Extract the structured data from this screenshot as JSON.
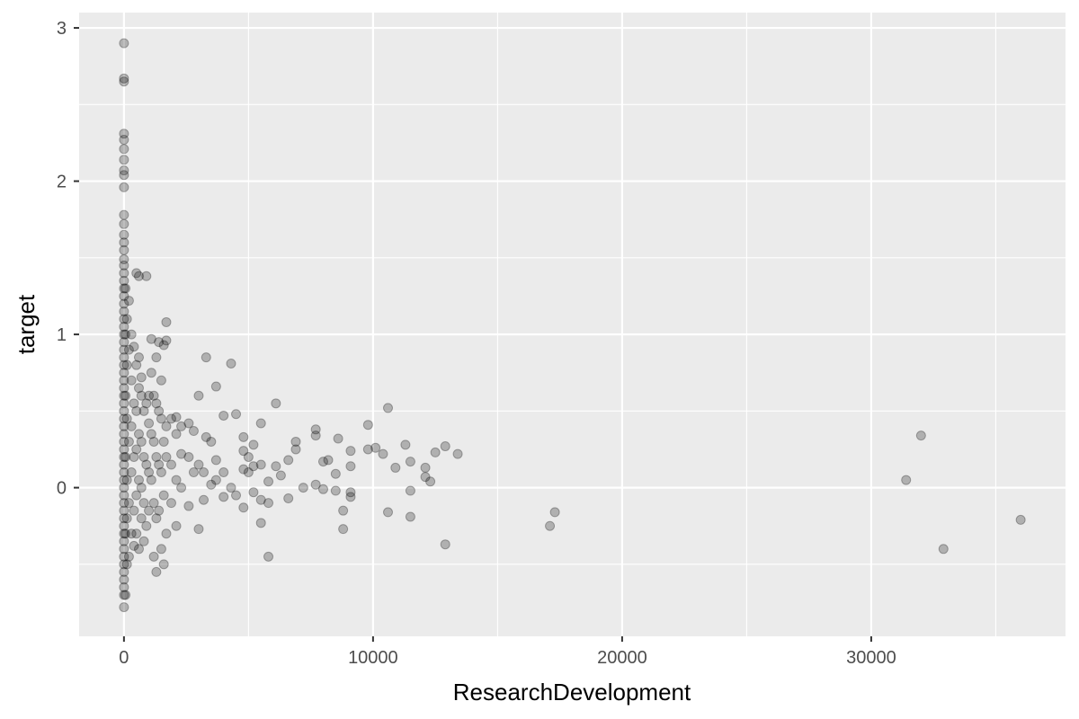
{
  "chart_data": {
    "type": "scatter",
    "title": "",
    "xlabel": "ResearchDevelopment",
    "ylabel": "target",
    "xlim": [
      -1800,
      37800
    ],
    "ylim": [
      -0.97,
      3.1
    ],
    "x_ticks": [
      0,
      10000,
      20000,
      30000
    ],
    "x_tick_labels": [
      "0",
      "10000",
      "20000",
      "30000"
    ],
    "x_minor": [
      5000,
      15000,
      25000,
      35000
    ],
    "y_ticks": [
      0,
      1,
      2,
      3
    ],
    "y_tick_labels": [
      "0",
      "1",
      "2",
      "3"
    ],
    "y_minor": [
      -0.5,
      0.5,
      1.5,
      2.5
    ],
    "grid": true,
    "legend": "none",
    "colors": {
      "panel": "#ebebeb",
      "grid": "#ffffff",
      "point": "#000000",
      "point_alpha": 0.25
    },
    "points": [
      [
        0,
        2.9
      ],
      [
        0,
        2.67
      ],
      [
        0,
        2.65
      ],
      [
        0,
        2.31
      ],
      [
        0,
        2.27
      ],
      [
        0,
        2.21
      ],
      [
        0,
        2.14
      ],
      [
        0,
        2.07
      ],
      [
        0,
        2.04
      ],
      [
        0,
        1.96
      ],
      [
        0,
        1.78
      ],
      [
        0,
        1.72
      ],
      [
        0,
        1.65
      ],
      [
        0,
        1.6
      ],
      [
        0,
        1.55
      ],
      [
        0,
        1.49
      ],
      [
        0,
        1.45
      ],
      [
        0,
        1.4
      ],
      [
        0,
        1.35
      ],
      [
        0,
        1.3
      ],
      [
        0,
        1.25
      ],
      [
        0,
        1.2
      ],
      [
        0,
        1.15
      ],
      [
        0,
        1.1
      ],
      [
        0,
        1.05
      ],
      [
        0,
        1.0
      ],
      [
        0,
        0.95
      ],
      [
        0,
        0.9
      ],
      [
        0,
        0.85
      ],
      [
        0,
        0.8
      ],
      [
        0,
        0.75
      ],
      [
        0,
        0.7
      ],
      [
        0,
        0.65
      ],
      [
        0,
        0.6
      ],
      [
        0,
        0.55
      ],
      [
        0,
        0.5
      ],
      [
        0,
        0.45
      ],
      [
        0,
        0.4
      ],
      [
        0,
        0.35
      ],
      [
        0,
        0.3
      ],
      [
        0,
        0.25
      ],
      [
        0,
        0.2
      ],
      [
        0,
        0.15
      ],
      [
        0,
        0.1
      ],
      [
        0,
        0.05
      ],
      [
        0,
        0.0
      ],
      [
        0,
        -0.05
      ],
      [
        0,
        -0.1
      ],
      [
        0,
        -0.15
      ],
      [
        0,
        -0.2
      ],
      [
        0,
        -0.25
      ],
      [
        0,
        -0.3
      ],
      [
        0,
        -0.35
      ],
      [
        0,
        -0.4
      ],
      [
        0,
        -0.45
      ],
      [
        0,
        -0.5
      ],
      [
        0,
        -0.55
      ],
      [
        0,
        -0.6
      ],
      [
        0,
        -0.65
      ],
      [
        0,
        -0.7
      ],
      [
        0,
        -0.78
      ],
      [
        60,
        1.3
      ],
      [
        60,
        1.0
      ],
      [
        60,
        0.6
      ],
      [
        60,
        0.2
      ],
      [
        60,
        -0.3
      ],
      [
        60,
        -0.7
      ],
      [
        120,
        1.1
      ],
      [
        120,
        0.8
      ],
      [
        120,
        0.45
      ],
      [
        120,
        0.05
      ],
      [
        120,
        -0.2
      ],
      [
        120,
        -0.5
      ],
      [
        200,
        1.22
      ],
      [
        200,
        0.9
      ],
      [
        200,
        0.3
      ],
      [
        200,
        -0.1
      ],
      [
        200,
        -0.45
      ],
      [
        300,
        1.0
      ],
      [
        300,
        0.7
      ],
      [
        300,
        0.4
      ],
      [
        300,
        0.1
      ],
      [
        300,
        -0.3
      ],
      [
        400,
        0.92
      ],
      [
        400,
        0.55
      ],
      [
        400,
        0.2
      ],
      [
        400,
        -0.15
      ],
      [
        400,
        -0.38
      ],
      [
        500,
        1.4
      ],
      [
        500,
        0.8
      ],
      [
        500,
        0.5
      ],
      [
        500,
        0.25
      ],
      [
        500,
        -0.05
      ],
      [
        500,
        -0.3
      ],
      [
        600,
        1.38
      ],
      [
        600,
        0.85
      ],
      [
        600,
        0.65
      ],
      [
        600,
        0.35
      ],
      [
        600,
        0.05
      ],
      [
        600,
        -0.4
      ],
      [
        700,
        0.72
      ],
      [
        700,
        0.6
      ],
      [
        700,
        0.3
      ],
      [
        700,
        0.0
      ],
      [
        700,
        -0.2
      ],
      [
        800,
        0.5
      ],
      [
        800,
        0.2
      ],
      [
        800,
        -0.1
      ],
      [
        800,
        -0.35
      ],
      [
        900,
        1.38
      ],
      [
        900,
        0.55
      ],
      [
        900,
        0.15
      ],
      [
        900,
        -0.25
      ],
      [
        1000,
        0.6
      ],
      [
        1000,
        0.42
      ],
      [
        1000,
        0.1
      ],
      [
        1000,
        -0.15
      ],
      [
        1100,
        0.97
      ],
      [
        1100,
        0.75
      ],
      [
        1100,
        0.35
      ],
      [
        1100,
        0.05
      ],
      [
        1200,
        0.6
      ],
      [
        1200,
        0.3
      ],
      [
        1200,
        -0.1
      ],
      [
        1200,
        -0.45
      ],
      [
        1300,
        0.85
      ],
      [
        1300,
        0.55
      ],
      [
        1300,
        0.2
      ],
      [
        1300,
        -0.2
      ],
      [
        1300,
        -0.55
      ],
      [
        1400,
        0.95
      ],
      [
        1400,
        0.5
      ],
      [
        1400,
        0.15
      ],
      [
        1400,
        -0.15
      ],
      [
        1500,
        0.7
      ],
      [
        1500,
        0.45
      ],
      [
        1500,
        0.1
      ],
      [
        1500,
        -0.4
      ],
      [
        1600,
        0.93
      ],
      [
        1600,
        0.3
      ],
      [
        1600,
        -0.05
      ],
      [
        1600,
        -0.5
      ],
      [
        1700,
        1.08
      ],
      [
        1700,
        0.96
      ],
      [
        1700,
        0.4
      ],
      [
        1700,
        0.2
      ],
      [
        1700,
        -0.3
      ],
      [
        1900,
        0.45
      ],
      [
        1900,
        0.15
      ],
      [
        1900,
        -0.1
      ],
      [
        2100,
        0.46
      ],
      [
        2100,
        0.35
      ],
      [
        2100,
        0.05
      ],
      [
        2100,
        -0.25
      ],
      [
        2300,
        0.4
      ],
      [
        2300,
        0.22
      ],
      [
        2300,
        0.0
      ],
      [
        2600,
        0.42
      ],
      [
        2600,
        0.2
      ],
      [
        2600,
        -0.12
      ],
      [
        2800,
        0.37
      ],
      [
        2800,
        0.1
      ],
      [
        3000,
        0.6
      ],
      [
        3000,
        0.15
      ],
      [
        3000,
        -0.27
      ],
      [
        3200,
        0.1
      ],
      [
        3200,
        -0.08
      ],
      [
        3300,
        0.85
      ],
      [
        3300,
        0.33
      ],
      [
        3500,
        0.3
      ],
      [
        3500,
        0.02
      ],
      [
        3700,
        0.66
      ],
      [
        3700,
        0.18
      ],
      [
        3700,
        0.05
      ],
      [
        4000,
        0.47
      ],
      [
        4000,
        0.1
      ],
      [
        4000,
        -0.06
      ],
      [
        4300,
        0.81
      ],
      [
        4300,
        0.0
      ],
      [
        4500,
        0.48
      ],
      [
        4500,
        -0.05
      ],
      [
        4800,
        0.33
      ],
      [
        4800,
        0.24
      ],
      [
        4800,
        0.12
      ],
      [
        4800,
        -0.13
      ],
      [
        5000,
        0.2
      ],
      [
        5000,
        0.1
      ],
      [
        5200,
        0.28
      ],
      [
        5200,
        0.14
      ],
      [
        5200,
        -0.03
      ],
      [
        5500,
        0.42
      ],
      [
        5500,
        0.15
      ],
      [
        5500,
        -0.08
      ],
      [
        5500,
        -0.23
      ],
      [
        5800,
        0.04
      ],
      [
        5800,
        -0.1
      ],
      [
        5800,
        -0.45
      ],
      [
        6100,
        0.55
      ],
      [
        6100,
        0.14
      ],
      [
        6300,
        0.08
      ],
      [
        6600,
        0.18
      ],
      [
        6600,
        -0.07
      ],
      [
        6900,
        0.3
      ],
      [
        6900,
        0.25
      ],
      [
        7200,
        0.0
      ],
      [
        7700,
        0.38
      ],
      [
        7700,
        0.34
      ],
      [
        7700,
        0.02
      ],
      [
        8000,
        0.17
      ],
      [
        8000,
        -0.01
      ],
      [
        8200,
        0.18
      ],
      [
        8500,
        0.09
      ],
      [
        8500,
        -0.02
      ],
      [
        8600,
        0.32
      ],
      [
        8800,
        -0.15
      ],
      [
        8800,
        -0.27
      ],
      [
        9100,
        0.24
      ],
      [
        9100,
        0.14
      ],
      [
        9100,
        -0.03
      ],
      [
        9100,
        -0.06
      ],
      [
        9800,
        0.41
      ],
      [
        9800,
        0.25
      ],
      [
        10100,
        0.26
      ],
      [
        10400,
        0.22
      ],
      [
        10600,
        0.52
      ],
      [
        10600,
        -0.16
      ],
      [
        10900,
        0.13
      ],
      [
        11300,
        0.28
      ],
      [
        11500,
        0.17
      ],
      [
        11500,
        -0.02
      ],
      [
        11500,
        -0.19
      ],
      [
        12100,
        0.13
      ],
      [
        12100,
        0.07
      ],
      [
        12300,
        0.04
      ],
      [
        12500,
        0.23
      ],
      [
        12900,
        0.27
      ],
      [
        12900,
        -0.37
      ],
      [
        13400,
        0.22
      ],
      [
        17100,
        -0.25
      ],
      [
        17300,
        -0.16
      ],
      [
        31400,
        0.05
      ],
      [
        32000,
        0.34
      ],
      [
        32900,
        -0.4
      ],
      [
        36000,
        -0.21
      ]
    ]
  }
}
